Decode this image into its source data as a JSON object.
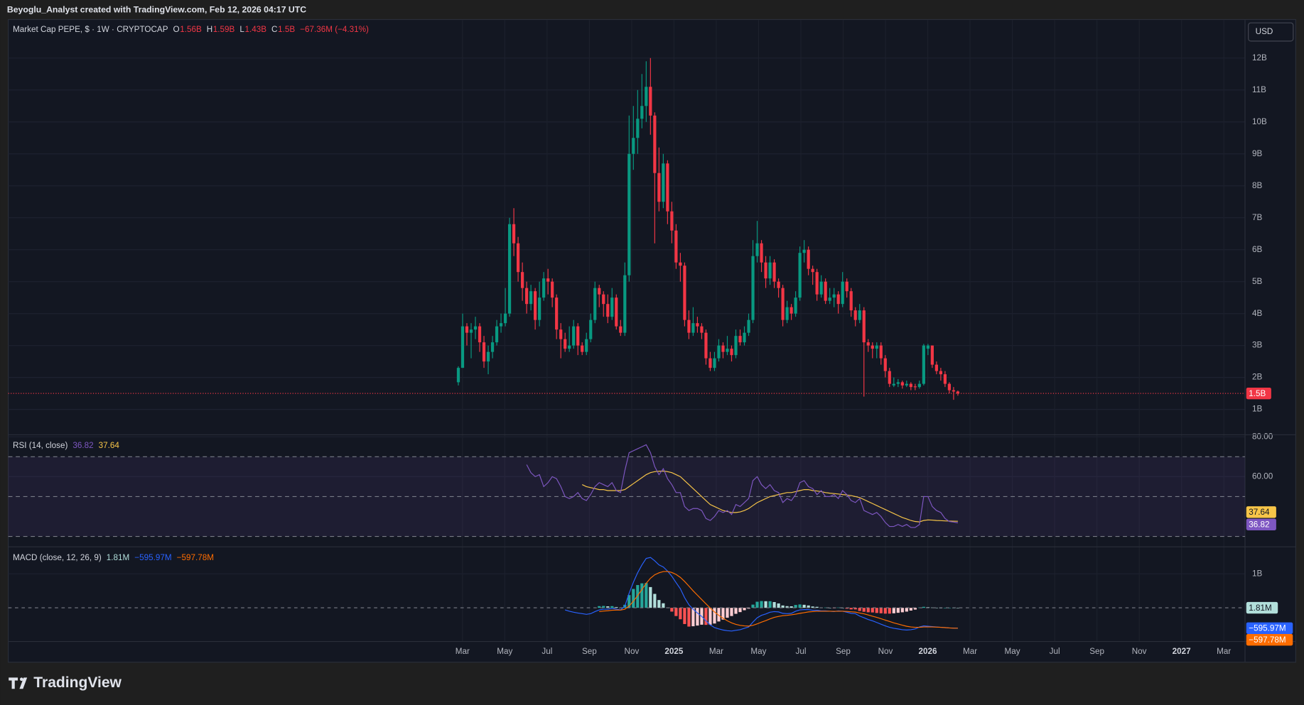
{
  "caption": "Beyoglu_Analyst created with TradingView.com, Feb 12, 2026 04:17 UTC",
  "currency": "USD",
  "watermark": "TradingView",
  "chart_data": [
    {
      "type": "candlestick",
      "title": "Market Cap PEPE, $ · 1W · CRYPTOCAP",
      "ohlc_letters": [
        "O",
        "H",
        "L",
        "C"
      ],
      "last_labels": [
        "1.56B",
        "1.59B",
        "1.43B",
        "1.5B"
      ],
      "change": "−67.36M (−4.31%)",
      "up_color": "#089981",
      "down_color": "#f23645",
      "grid": true,
      "ylim": [
        0.22,
        13.22
      ],
      "yticks": [
        {
          "value": 1,
          "label": "1B"
        },
        {
          "value": 2,
          "label": "2B"
        },
        {
          "value": 3,
          "label": "3B"
        },
        {
          "value": 4,
          "label": "4B"
        },
        {
          "value": 5,
          "label": "5B"
        },
        {
          "value": 6,
          "label": "6B"
        },
        {
          "value": 7,
          "label": "7B"
        },
        {
          "value": 8,
          "label": "8B"
        },
        {
          "value": 9,
          "label": "9B"
        },
        {
          "value": 10,
          "label": "10B"
        },
        {
          "value": 11,
          "label": "11B"
        },
        {
          "value": 12,
          "label": "12B"
        }
      ],
      "x_labels": [
        "Mar",
        "May",
        "Jul",
        "Sep",
        "Nov",
        "2025",
        "Mar",
        "May",
        "Jul",
        "Sep",
        "Nov",
        "2026",
        "Mar",
        "May",
        "Jul",
        "Sep",
        "Nov",
        "2027",
        "Mar"
      ],
      "open": [
        1.85,
        2.3,
        3.6,
        3.4,
        3.5,
        3.6,
        3.1,
        2.5,
        2.8,
        3.1,
        3.6,
        3.7,
        4.0,
        6.8,
        6.2,
        5.3,
        4.8,
        4.3,
        4.7,
        3.8,
        4.5,
        5.1,
        5.0,
        4.5,
        3.5,
        3.2,
        2.9,
        3.0,
        3.6,
        3.0,
        2.8,
        3.2,
        3.8,
        4.8,
        4.6,
        4.3,
        3.9,
        4.5,
        3.6,
        3.4,
        5.2,
        9.0,
        9.5,
        10.1,
        10.5,
        11.1,
        10.2,
        8.4,
        7.5,
        8.7,
        7.2,
        6.6,
        5.6,
        5.5,
        3.8,
        3.4,
        3.7,
        3.6,
        3.4,
        2.6,
        2.3,
        2.6,
        3.0,
        2.8,
        2.9,
        2.7,
        3.3,
        3.1,
        3.4,
        3.8,
        5.8,
        6.2,
        5.6,
        5.1,
        5.6,
        5.0,
        4.8,
        3.8,
        4.2,
        4.0,
        4.5,
        5.9,
        6.0,
        5.4,
        5.3,
        4.6,
        5.0,
        4.4,
        4.5,
        4.6,
        4.3,
        5.0,
        4.7,
        4.1,
        3.8,
        4.1,
        3.1,
        3.0,
        2.9,
        3.0,
        2.6,
        2.2,
        1.75,
        1.8,
        1.85,
        1.75,
        1.8,
        1.72,
        1.7,
        1.8,
        2.9,
        3.0,
        2.4,
        2.2,
        2.1,
        1.8,
        1.6,
        1.56
      ],
      "high": [
        2.35,
        4.0,
        3.7,
        3.7,
        3.9,
        3.7,
        3.3,
        3.0,
        3.3,
        3.8,
        4.0,
        4.8,
        7.0,
        7.3,
        6.4,
        5.6,
        5.0,
        4.9,
        4.8,
        5.0,
        5.3,
        5.4,
        5.1,
        4.6,
        3.7,
        3.4,
        3.6,
        3.8,
        3.7,
        3.1,
        3.4,
        4.0,
        5.0,
        4.9,
        4.7,
        4.6,
        4.8,
        4.6,
        3.8,
        5.6,
        10.2,
        10.5,
        11.0,
        11.5,
        11.9,
        12.0,
        10.3,
        9.2,
        9.0,
        8.8,
        7.5,
        6.8,
        5.9,
        5.6,
        4.1,
        4.2,
        3.9,
        3.7,
        3.5,
        2.8,
        2.8,
        3.2,
        3.1,
        3.3,
        3.0,
        3.5,
        3.5,
        3.6,
        4.0,
        6.3,
        6.9,
        6.3,
        5.8,
        5.8,
        5.7,
        5.1,
        4.9,
        4.4,
        4.3,
        4.7,
        6.1,
        6.3,
        6.1,
        5.5,
        5.4,
        5.2,
        5.1,
        4.8,
        4.8,
        4.7,
        5.3,
        5.1,
        4.8,
        4.2,
        4.3,
        4.2,
        3.2,
        3.1,
        3.1,
        3.1,
        2.7,
        2.3,
        2.0,
        1.95,
        1.9,
        1.9,
        1.85,
        1.8,
        1.9,
        3.05,
        3.05,
        3.0,
        2.5,
        2.3,
        2.2,
        1.85,
        1.7,
        1.59
      ],
      "low": [
        1.75,
        2.3,
        3.0,
        2.6,
        3.2,
        2.8,
        2.3,
        2.1,
        2.6,
        3.0,
        3.4,
        3.6,
        3.9,
        5.8,
        5.0,
        4.4,
        4.0,
        4.1,
        3.5,
        3.6,
        4.4,
        4.6,
        4.2,
        3.2,
        2.6,
        2.8,
        2.8,
        2.9,
        2.7,
        2.7,
        2.7,
        3.1,
        3.7,
        4.2,
        3.9,
        3.7,
        3.8,
        3.5,
        3.3,
        3.3,
        5.0,
        8.5,
        9.0,
        9.8,
        10.0,
        9.6,
        6.2,
        7.2,
        7.3,
        6.8,
        6.2,
        5.4,
        5.0,
        3.6,
        3.2,
        3.3,
        3.4,
        3.2,
        2.4,
        2.2,
        2.2,
        2.5,
        2.6,
        2.7,
        2.5,
        2.6,
        3.0,
        3.0,
        3.3,
        3.7,
        5.6,
        5.3,
        4.8,
        4.9,
        4.8,
        4.5,
        3.6,
        3.7,
        3.8,
        3.9,
        4.4,
        5.6,
        5.2,
        4.9,
        4.4,
        4.5,
        4.3,
        4.3,
        4.2,
        4.0,
        4.2,
        4.5,
        3.9,
        3.6,
        3.7,
        1.4,
        2.8,
        2.6,
        2.6,
        2.4,
        2.0,
        1.7,
        1.7,
        1.7,
        1.65,
        1.7,
        1.6,
        1.6,
        1.65,
        1.75,
        2.7,
        2.3,
        2.1,
        1.9,
        1.7,
        1.5,
        1.3,
        1.43
      ],
      "close": [
        2.3,
        3.6,
        3.4,
        3.5,
        3.6,
        3.1,
        2.5,
        2.8,
        3.1,
        3.6,
        3.7,
        4.0,
        6.8,
        6.2,
        5.3,
        4.8,
        4.3,
        4.7,
        3.8,
        4.5,
        5.1,
        5.0,
        4.5,
        3.5,
        3.2,
        2.9,
        3.0,
        3.6,
        3.0,
        2.8,
        3.2,
        3.8,
        4.8,
        4.6,
        4.3,
        3.9,
        4.5,
        3.6,
        3.4,
        5.2,
        9.0,
        9.5,
        10.1,
        10.5,
        11.1,
        10.2,
        8.4,
        7.5,
        8.7,
        7.2,
        6.6,
        5.6,
        5.5,
        3.8,
        3.4,
        3.7,
        3.6,
        3.4,
        2.6,
        2.3,
        2.6,
        3.0,
        2.8,
        2.9,
        2.7,
        3.3,
        3.1,
        3.4,
        3.8,
        5.8,
        6.2,
        5.6,
        5.1,
        5.6,
        5.0,
        4.8,
        3.8,
        4.2,
        4.0,
        4.5,
        5.9,
        6.0,
        5.4,
        5.3,
        4.6,
        5.0,
        4.4,
        4.5,
        4.6,
        4.3,
        5.0,
        4.7,
        4.1,
        3.8,
        4.1,
        3.1,
        3.0,
        2.9,
        3.0,
        2.6,
        2.2,
        1.8,
        1.8,
        1.85,
        1.75,
        1.8,
        1.7,
        1.7,
        1.8,
        3.0,
        3.0,
        2.4,
        2.2,
        2.1,
        1.8,
        1.6,
        1.56,
        1.5
      ]
    },
    {
      "type": "line",
      "title": "RSI (14, close)",
      "grid": true,
      "ylim": [
        25,
        80.83
      ],
      "yticks": [
        {
          "value": 80,
          "label": "80.00"
        },
        {
          "value": 60,
          "label": "60.00"
        }
      ],
      "levels": [
        70,
        50,
        30
      ],
      "band_color": "#7e57c2",
      "series": [
        {
          "color": "#7e57c2",
          "values": [
            null,
            null,
            null,
            null,
            null,
            null,
            null,
            null,
            null,
            null,
            null,
            null,
            null,
            null,
            null,
            null,
            66,
            62,
            60,
            61,
            55,
            57,
            60,
            59,
            55,
            50,
            49,
            50,
            52,
            49,
            48,
            51,
            55,
            57,
            56,
            55,
            57,
            53,
            52,
            63,
            72,
            73,
            74,
            75,
            76,
            72,
            65,
            61,
            64,
            59,
            56,
            52,
            52,
            45,
            43,
            44,
            44,
            43,
            39,
            38,
            40,
            43,
            42,
            43,
            41,
            46,
            45,
            47,
            49,
            58,
            60,
            56,
            54,
            56,
            53,
            52,
            47,
            49,
            48,
            51,
            57,
            58,
            55,
            54,
            51,
            53,
            50,
            50,
            51,
            49,
            53,
            51,
            48,
            47,
            49,
            43,
            42,
            41,
            42,
            40,
            37,
            35,
            35,
            36,
            35,
            36,
            34.5,
            34.5,
            36,
            50,
            50,
            45,
            43,
            42,
            39,
            37.5,
            37.2,
            36.82
          ]
        },
        {
          "color": "#f7c548",
          "values": [
            null,
            null,
            null,
            null,
            null,
            null,
            null,
            null,
            null,
            null,
            null,
            null,
            null,
            null,
            null,
            null,
            null,
            null,
            null,
            null,
            null,
            null,
            null,
            null,
            null,
            null,
            null,
            null,
            null,
            56,
            55,
            54.5,
            54,
            53.5,
            53.5,
            53,
            53,
            53,
            53,
            53.5,
            55,
            56.5,
            58,
            59.5,
            61,
            62,
            62.5,
            62.7,
            62.8,
            62.5,
            62,
            61,
            60,
            58,
            56,
            54,
            52,
            50,
            48,
            46,
            45,
            44,
            43,
            42.5,
            42,
            42,
            42.3,
            43,
            44,
            45.5,
            47,
            48,
            49,
            50,
            50.5,
            51,
            51.5,
            52,
            52,
            52.5,
            53,
            53.5,
            53.5,
            53,
            52.8,
            52.5,
            52,
            51.7,
            51.5,
            51.3,
            51,
            50.8,
            50.5,
            50,
            49.5,
            48.5,
            47.5,
            46.5,
            45.5,
            44.5,
            43.5,
            42.5,
            41.5,
            40.5,
            39.5,
            38.8,
            38,
            37.5,
            37.3,
            38,
            38.3,
            38.2,
            38,
            37.9,
            37.8,
            37.7,
            37.65,
            37.64
          ]
        }
      ]
    },
    {
      "type": "macd",
      "title": "MACD (close, 12, 26, 9)",
      "grid": true,
      "ylim": [
        -975,
        1780
      ],
      "yticks": [
        {
          "value": 1000,
          "label": "1B"
        }
      ],
      "histogram": {
        "colors": [
          "#26a69a",
          "#b2dfdb",
          "#ff5252",
          "#ffcdd2"
        ],
        "last_label": "1.81M",
        "values": [
          null,
          null,
          null,
          null,
          null,
          null,
          null,
          null,
          null,
          null,
          null,
          null,
          null,
          null,
          null,
          null,
          null,
          null,
          null,
          null,
          null,
          null,
          null,
          null,
          null,
          null,
          null,
          null,
          null,
          null,
          null,
          null,
          null,
          50,
          55,
          45,
          50,
          25,
          5,
          90,
          375,
          555,
          670,
          720,
          730,
          610,
          410,
          230,
          135,
          10,
          -110,
          -240,
          -335,
          -475,
          -550,
          -540,
          -520,
          -495,
          -500,
          -495,
          -460,
          -400,
          -345,
          -290,
          -240,
          -175,
          -125,
          -70,
          -25,
          95,
          180,
          200,
          195,
          195,
          170,
          130,
          70,
          50,
          45,
          85,
          100,
          90,
          70,
          40,
          30,
          10,
          10,
          0,
          -8,
          10,
          0,
          -25,
          -45,
          -45,
          -90,
          -115,
          -130,
          -135,
          -150,
          -160,
          -170,
          -170,
          -160,
          -145,
          -130,
          -110,
          -80,
          -50,
          10,
          30,
          20,
          10,
          5,
          0,
          0,
          0,
          2,
          1.81
        ]
      },
      "series": [
        {
          "color": "#2962ff",
          "last_label": "−595.97M",
          "values": [
            null,
            null,
            null,
            null,
            null,
            null,
            null,
            null,
            null,
            null,
            null,
            null,
            null,
            null,
            null,
            null,
            null,
            null,
            null,
            null,
            null,
            null,
            null,
            null,
            null,
            -60,
            -100,
            -130,
            -150,
            -170,
            -190,
            -170,
            -110,
            -60,
            -40,
            -40,
            -20,
            -40,
            -60,
            50,
            430,
            750,
            1030,
            1260,
            1450,
            1480,
            1380,
            1260,
            1200,
            1080,
            930,
            740,
            560,
            300,
            90,
            -40,
            -150,
            -250,
            -380,
            -500,
            -580,
            -620,
            -650,
            -670,
            -680,
            -660,
            -640,
            -600,
            -560,
            -420,
            -290,
            -220,
            -180,
            -130,
            -110,
            -120,
            -160,
            -170,
            -160,
            -100,
            -60,
            -50,
            -50,
            -70,
            -70,
            -90,
            -90,
            -100,
            -110,
            -90,
            -100,
            -130,
            -160,
            -170,
            -240,
            -290,
            -340,
            -380,
            -430,
            -480,
            -530,
            -570,
            -600,
            -620,
            -640,
            -650,
            -640,
            -620,
            -560,
            -530,
            -540,
            -550,
            -560,
            -570,
            -580,
            -590,
            -594,
            -595.97
          ]
        },
        {
          "color": "#ff6d00",
          "last_label": "−597.78M",
          "values": [
            null,
            null,
            null,
            null,
            null,
            null,
            null,
            null,
            null,
            null,
            null,
            null,
            null,
            null,
            null,
            null,
            null,
            null,
            null,
            null,
            null,
            null,
            null,
            null,
            null,
            null,
            null,
            null,
            null,
            null,
            null,
            null,
            null,
            -110,
            -95,
            -85,
            -70,
            -65,
            -65,
            -40,
            55,
            195,
            360,
            540,
            720,
            870,
            970,
            1030,
            1065,
            1070,
            1040,
            980,
            895,
            775,
            640,
            500,
            370,
            245,
            120,
            -5,
            -120,
            -220,
            -305,
            -380,
            -440,
            -485,
            -515,
            -530,
            -535,
            -515,
            -470,
            -420,
            -375,
            -325,
            -280,
            -250,
            -230,
            -220,
            -205,
            -185,
            -160,
            -140,
            -120,
            -110,
            -100,
            -100,
            -100,
            -100,
            -102,
            -100,
            -100,
            -105,
            -115,
            -125,
            -150,
            -175,
            -210,
            -245,
            -280,
            -320,
            -360,
            -400,
            -440,
            -475,
            -510,
            -540,
            -560,
            -570,
            -570,
            -560,
            -560,
            -560,
            -565,
            -570,
            -580,
            -590,
            -596,
            -597.78
          ]
        }
      ]
    }
  ]
}
